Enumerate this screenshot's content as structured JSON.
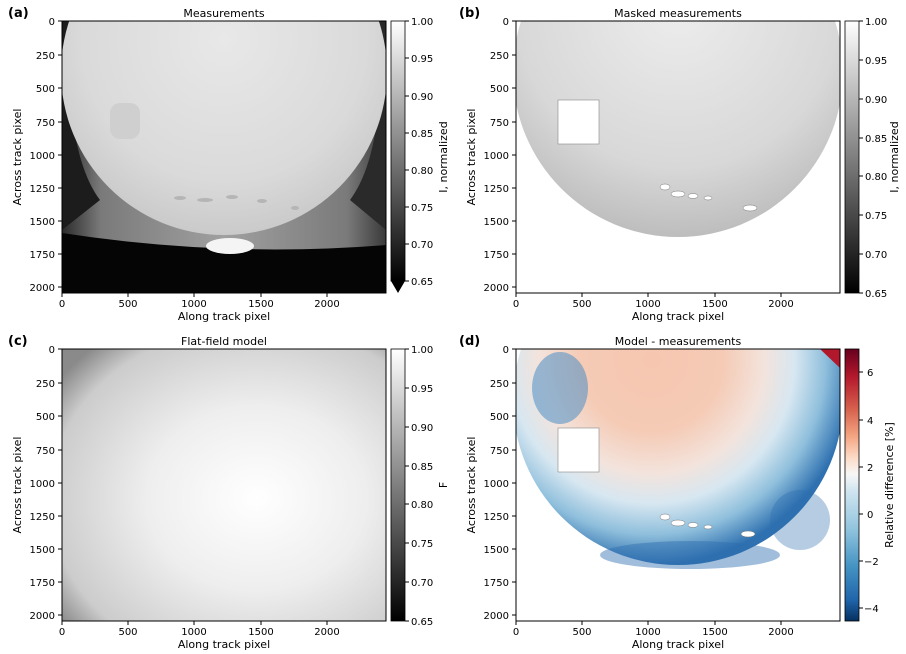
{
  "figure": {
    "panels": [
      {
        "letter": "(a)",
        "title": "Measurements",
        "xlabel": "Along track pixel",
        "ylabel": "Across track pixel",
        "colorbar_label": "I, normalized",
        "colorbar_ticks": [
          "1.00",
          "0.95",
          "0.90",
          "0.85",
          "0.80",
          "0.75",
          "0.70",
          "0.65"
        ],
        "colorbar_extend_min": true,
        "colormap": "gray",
        "image": "measurements"
      },
      {
        "letter": "(b)",
        "title": "Masked measurements",
        "xlabel": "Along track pixel",
        "ylabel": "Across track pixel",
        "colorbar_label": "I, normalized",
        "colorbar_ticks": [
          "1.00",
          "0.95",
          "0.90",
          "0.85",
          "0.80",
          "0.75",
          "0.70",
          "0.65"
        ],
        "colorbar_extend_min": false,
        "colormap": "gray",
        "image": "masked"
      },
      {
        "letter": "(c)",
        "title": "Flat-field model",
        "xlabel": "Along track pixel",
        "ylabel": "Across track pixel",
        "colorbar_label": "F",
        "colorbar_ticks": [
          "1.00",
          "0.95",
          "0.90",
          "0.85",
          "0.80",
          "0.75",
          "0.70",
          "0.65"
        ],
        "colorbar_extend_min": false,
        "colormap": "gray",
        "image": "model"
      },
      {
        "letter": "(d)",
        "title": "Model - measurements",
        "xlabel": "Along track pixel",
        "ylabel": "Across track pixel",
        "colorbar_label": "Relative difference [%]",
        "colorbar_ticks": [
          "6",
          "4",
          "2",
          "0",
          "−2",
          "−4"
        ],
        "colorbar_extend_min": false,
        "colormap": "RdBu_r",
        "image": "difference"
      }
    ]
  },
  "chart_data": {
    "type": "heatmap",
    "x_ticks": [
      "0",
      "500",
      "1000",
      "1500",
      "2000"
    ],
    "y_ticks": [
      "0",
      "250",
      "500",
      "750",
      "1000",
      "1250",
      "1500",
      "1750",
      "2000"
    ],
    "x_range": [
      0,
      2450
    ],
    "y_range": [
      2048,
      0
    ],
    "intensity_range": [
      0.65,
      1.0
    ],
    "difference_range": [
      -4.6,
      7.0
    ],
    "colors": {
      "red": "#67001f",
      "blue": "#053061",
      "neutral": "#f7f7f7"
    }
  }
}
